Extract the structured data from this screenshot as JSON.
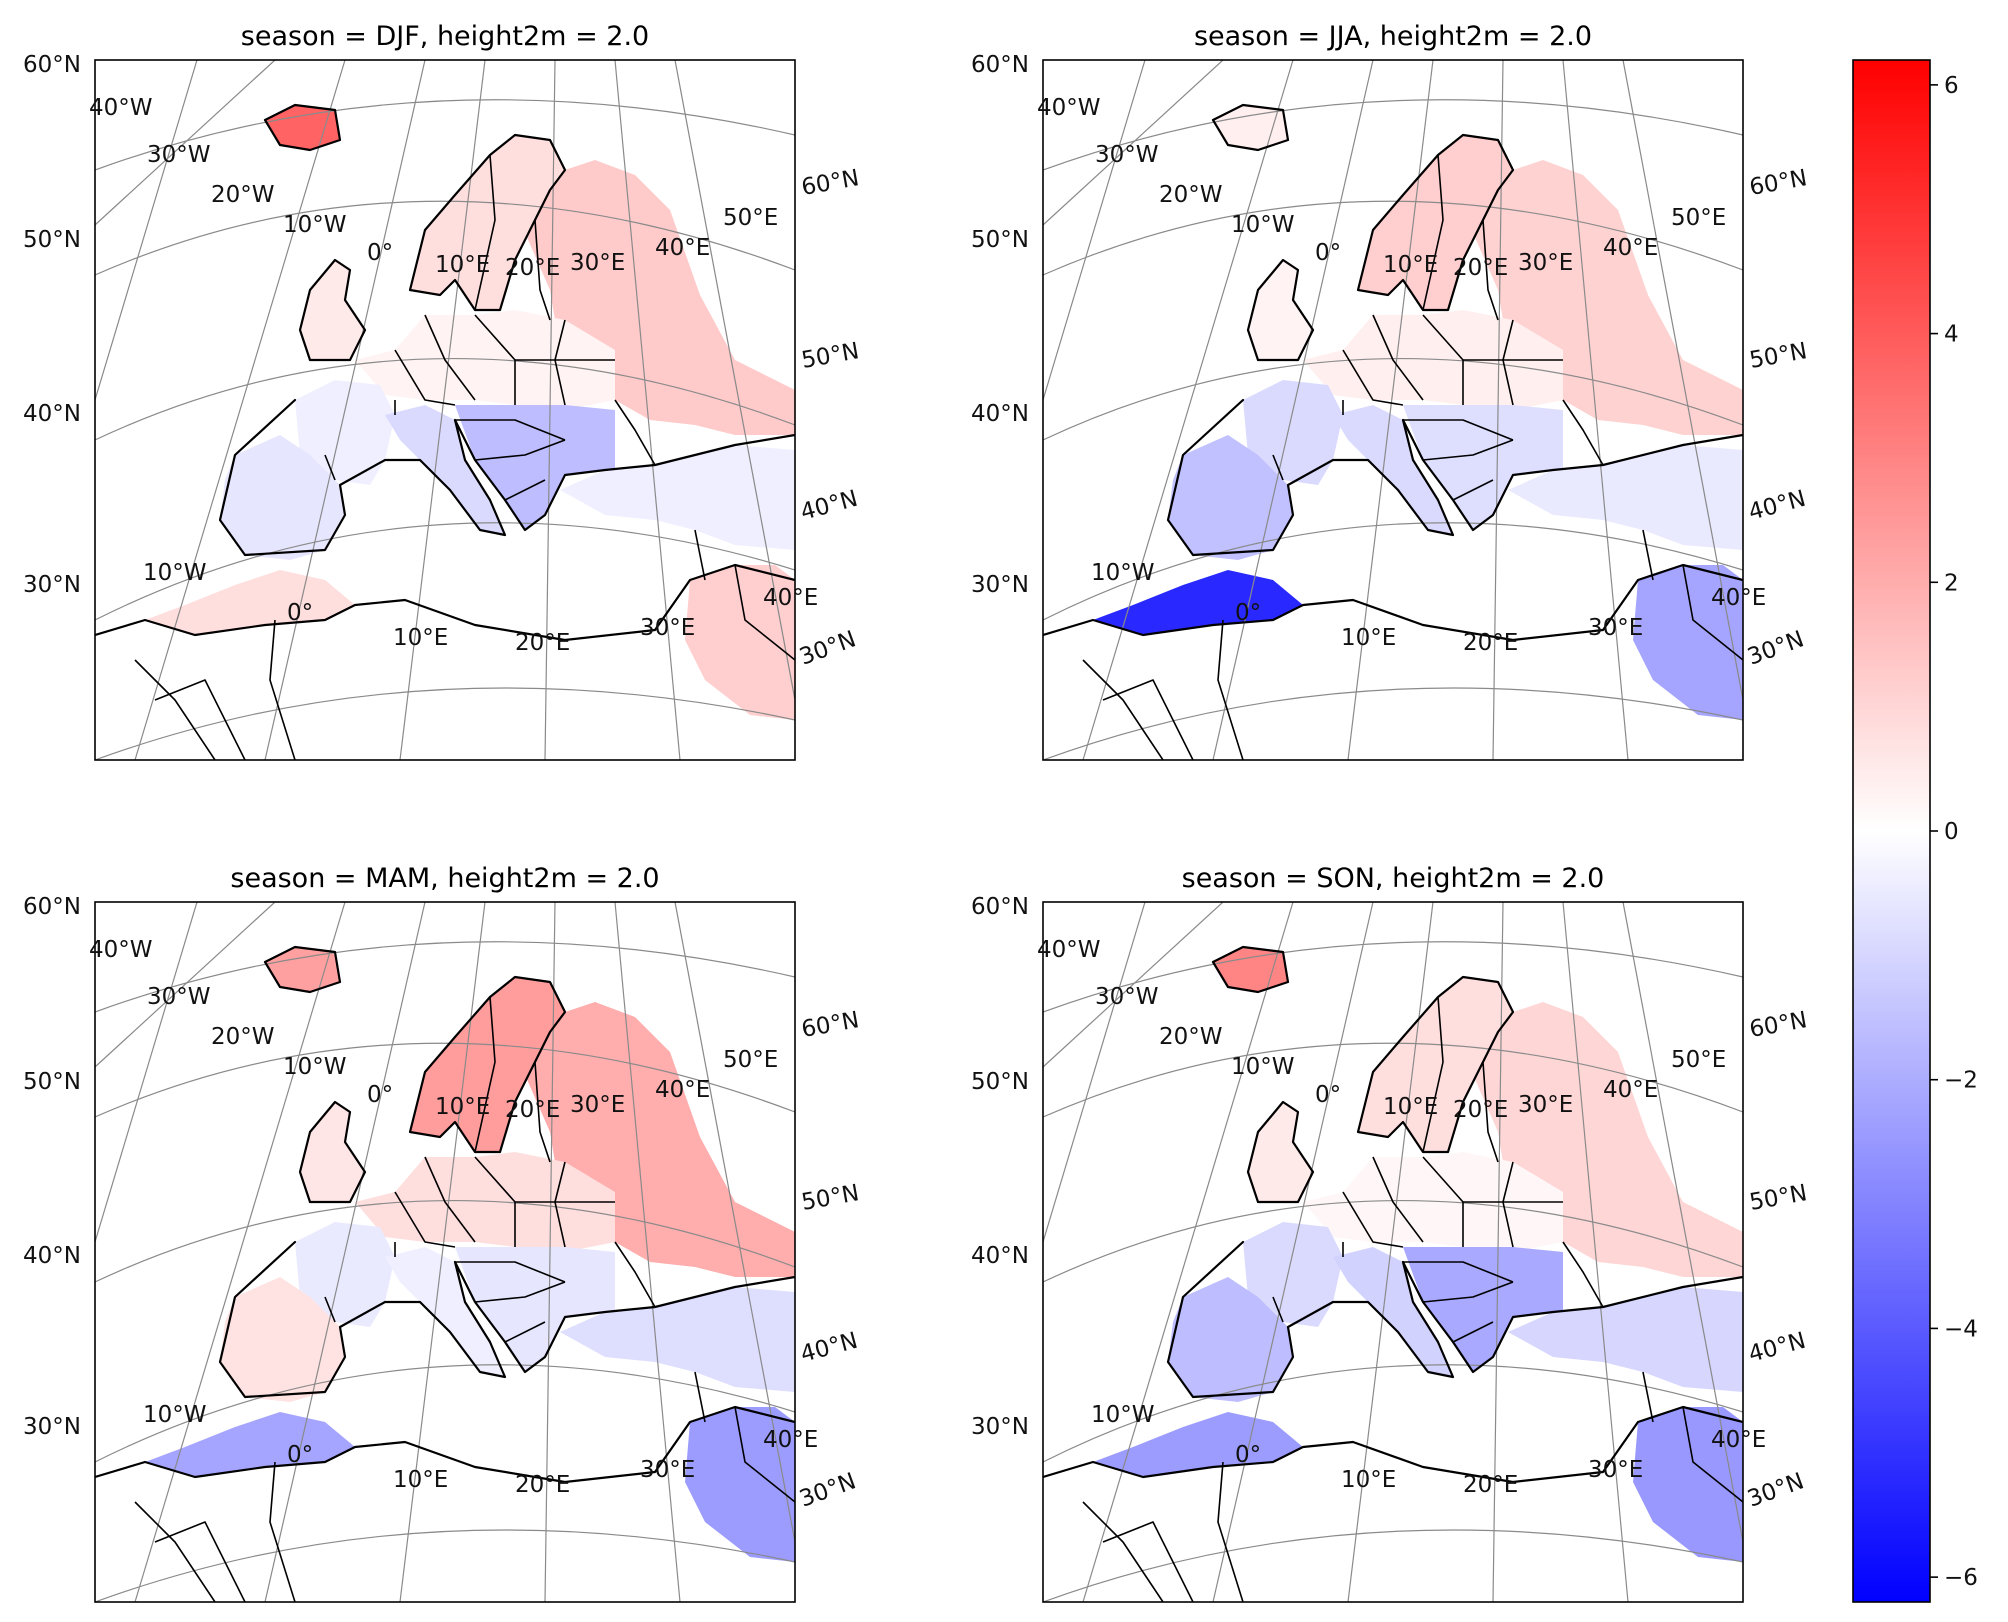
{
  "figure": {
    "colormap": "bwr",
    "colors": {
      "low": "#0000ff",
      "mid": "#ffffff",
      "high": "#ff0000"
    }
  },
  "panels": [
    {
      "title": "season = DJF, height2m = 2.0",
      "regions": {
        "iceland": 3.8,
        "scandinavia": 0.8,
        "russia": 1.3,
        "uk": 0.5,
        "iberia": -0.6,
        "france": -0.4,
        "alps_italy": -0.9,
        "balkans": -1.6,
        "central_europe": 0.3,
        "turkey": -0.4,
        "north_africa": 0.8,
        "middle_east": 1.2
      }
    },
    {
      "title": "season = JJA, height2m = 2.0",
      "regions": {
        "iceland": 0.4,
        "scandinavia": 1.2,
        "russia": 1.1,
        "uk": 0.3,
        "iberia": -1.5,
        "france": -0.9,
        "alps_italy": -0.9,
        "balkans": -0.8,
        "central_europe": 0.4,
        "turkey": -0.5,
        "north_africa": -5.2,
        "middle_east": -2.2
      }
    },
    {
      "title": "season = MAM, height2m = 2.0",
      "regions": {
        "iceland": 2.3,
        "scandinavia": 2.4,
        "russia": 2.0,
        "uk": 0.6,
        "iberia": 0.7,
        "france": -0.5,
        "alps_italy": -0.4,
        "balkans": -0.6,
        "central_europe": 0.8,
        "turkey": -0.8,
        "north_africa": -2.2,
        "middle_east": -2.4
      }
    },
    {
      "title": "season = SON, height2m = 2.0",
      "regions": {
        "iceland": 3.0,
        "scandinavia": 0.8,
        "russia": 1.0,
        "uk": 0.5,
        "iberia": -1.6,
        "france": -0.9,
        "alps_italy": -1.1,
        "balkans": -2.1,
        "central_europe": 0.2,
        "turkey": -1.0,
        "north_africa": -2.4,
        "middle_east": -2.5
      }
    }
  ],
  "graticule": {
    "lat_labels_left": [
      "60°N",
      "50°N",
      "40°N",
      "30°N"
    ],
    "lat_labels_right": [
      "60°N",
      "50°N",
      "40°N",
      "30°N"
    ],
    "lon_labels_top": [
      "40°W",
      "30°W",
      "20°W",
      "10°W",
      "0°",
      "10°E",
      "20°E",
      "30°E",
      "40°E",
      "50°E"
    ],
    "lon_labels_bottom": [
      "10°W",
      "0°",
      "10°E",
      "20°E",
      "30°E",
      "40°E"
    ]
  },
  "colorbar": {
    "min": -6.2,
    "max": 6.2,
    "ticks": [
      "−6",
      "−4",
      "−2",
      "0",
      "2",
      "4",
      "6"
    ],
    "tick_values": [
      -6,
      -4,
      -2,
      0,
      2,
      4,
      6
    ]
  }
}
